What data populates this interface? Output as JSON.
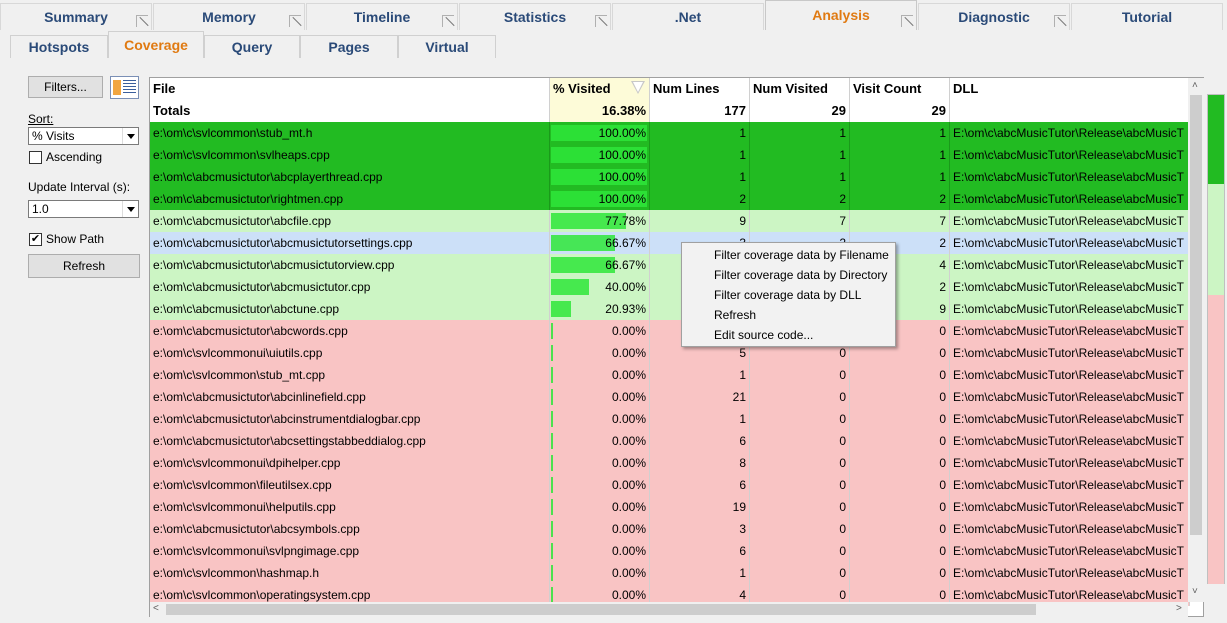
{
  "top_tabs": [
    {
      "label": "Summary",
      "active": false
    },
    {
      "label": "Memory",
      "active": false
    },
    {
      "label": "Timeline",
      "active": false
    },
    {
      "label": "Statistics",
      "active": false
    },
    {
      "label": ".Net",
      "active": false
    },
    {
      "label": "Analysis",
      "active": true
    },
    {
      "label": "Diagnostic",
      "active": false
    },
    {
      "label": "Tutorial",
      "active": false
    }
  ],
  "sub_tabs": [
    {
      "label": "Hotspots",
      "active": false
    },
    {
      "label": "Coverage",
      "active": true
    },
    {
      "label": "Query",
      "active": false
    },
    {
      "label": "Pages",
      "active": false
    },
    {
      "label": "Virtual",
      "active": false
    }
  ],
  "left_panel": {
    "filters_label": "Filters...",
    "sort_label": "Sort:",
    "sort_value": "% Visits",
    "ascending_label": "Ascending",
    "ascending_checked": false,
    "update_interval_label": "Update Interval (s):",
    "update_interval_value": "1.0",
    "show_path_label": "Show Path",
    "show_path_checked": true,
    "refresh_label": "Refresh"
  },
  "table": {
    "columns": [
      "File",
      "% Visited",
      "Num Lines",
      "Num Visited",
      "Visit Count",
      "DLL"
    ],
    "totals": {
      "label": "Totals",
      "pct": "16.38%",
      "lines": "177",
      "visited": "29",
      "count": "29"
    },
    "rows": [
      {
        "file": "e:\\om\\c\\svlcommon\\stub_mt.h",
        "pct": "100.00%",
        "pct_value": 100,
        "lines": "1",
        "visited": "1",
        "count": "1",
        "dll": "E:\\om\\c\\abcMusicTutor\\Release\\abcMusicT",
        "status": "full"
      },
      {
        "file": "e:\\om\\c\\svlcommon\\svlheaps.cpp",
        "pct": "100.00%",
        "pct_value": 100,
        "lines": "1",
        "visited": "1",
        "count": "1",
        "dll": "E:\\om\\c\\abcMusicTutor\\Release\\abcMusicT",
        "status": "full"
      },
      {
        "file": "e:\\om\\c\\abcmusictutor\\abcplayerthread.cpp",
        "pct": "100.00%",
        "pct_value": 100,
        "lines": "1",
        "visited": "1",
        "count": "1",
        "dll": "E:\\om\\c\\abcMusicTutor\\Release\\abcMusicT",
        "status": "full"
      },
      {
        "file": "e:\\om\\c\\abcmusictutor\\rightmen.cpp",
        "pct": "100.00%",
        "pct_value": 100,
        "lines": "2",
        "visited": "2",
        "count": "2",
        "dll": "E:\\om\\c\\abcMusicTutor\\Release\\abcMusicT",
        "status": "full"
      },
      {
        "file": "e:\\om\\c\\abcmusictutor\\abcfile.cpp",
        "pct": "77.78%",
        "pct_value": 77.78,
        "lines": "9",
        "visited": "7",
        "count": "7",
        "dll": "E:\\om\\c\\abcMusicTutor\\Release\\abcMusicT",
        "status": "partial"
      },
      {
        "file": "e:\\om\\c\\abcmusictutor\\abcmusictutorsettings.cpp",
        "pct": "66.67%",
        "pct_value": 66.67,
        "lines": "3",
        "visited": "2",
        "count": "2",
        "dll": "E:\\om\\c\\abcMusicTutor\\Release\\abcMusicT",
        "status": "selected"
      },
      {
        "file": "e:\\om\\c\\abcmusictutor\\abcmusictutorview.cpp",
        "pct": "66.67%",
        "pct_value": 66.67,
        "lines": "",
        "visited": "",
        "count": "4",
        "dll": "E:\\om\\c\\abcMusicTutor\\Release\\abcMusicT",
        "status": "partial"
      },
      {
        "file": "e:\\om\\c\\abcmusictutor\\abcmusictutor.cpp",
        "pct": "40.00%",
        "pct_value": 40,
        "lines": "",
        "visited": "",
        "count": "2",
        "dll": "E:\\om\\c\\abcMusicTutor\\Release\\abcMusicT",
        "status": "partial"
      },
      {
        "file": "e:\\om\\c\\abcmusictutor\\abctune.cpp",
        "pct": "20.93%",
        "pct_value": 20.93,
        "lines": "",
        "visited": "",
        "count": "9",
        "dll": "E:\\om\\c\\abcMusicTutor\\Release\\abcMusicT",
        "status": "partial"
      },
      {
        "file": "e:\\om\\c\\abcmusictutor\\abcwords.cpp",
        "pct": "0.00%",
        "pct_value": 0,
        "lines": "",
        "visited": "",
        "count": "0",
        "dll": "E:\\om\\c\\abcMusicTutor\\Release\\abcMusicT",
        "status": "none"
      },
      {
        "file": "e:\\om\\c\\svlcommonui\\uiutils.cpp",
        "pct": "0.00%",
        "pct_value": 0,
        "lines": "5",
        "visited": "0",
        "count": "0",
        "dll": "E:\\om\\c\\abcMusicTutor\\Release\\abcMusicT",
        "status": "none"
      },
      {
        "file": "e:\\om\\c\\svlcommon\\stub_mt.cpp",
        "pct": "0.00%",
        "pct_value": 0,
        "lines": "1",
        "visited": "0",
        "count": "0",
        "dll": "E:\\om\\c\\abcMusicTutor\\Release\\abcMusicT",
        "status": "none"
      },
      {
        "file": "e:\\om\\c\\abcmusictutor\\abcinlinefield.cpp",
        "pct": "0.00%",
        "pct_value": 0,
        "lines": "21",
        "visited": "0",
        "count": "0",
        "dll": "E:\\om\\c\\abcMusicTutor\\Release\\abcMusicT",
        "status": "none"
      },
      {
        "file": "e:\\om\\c\\abcmusictutor\\abcinstrumentdialogbar.cpp",
        "pct": "0.00%",
        "pct_value": 0,
        "lines": "1",
        "visited": "0",
        "count": "0",
        "dll": "E:\\om\\c\\abcMusicTutor\\Release\\abcMusicT",
        "status": "none"
      },
      {
        "file": "e:\\om\\c\\abcmusictutor\\abcsettingstabbeddialog.cpp",
        "pct": "0.00%",
        "pct_value": 0,
        "lines": "6",
        "visited": "0",
        "count": "0",
        "dll": "E:\\om\\c\\abcMusicTutor\\Release\\abcMusicT",
        "status": "none"
      },
      {
        "file": "e:\\om\\c\\svlcommonui\\dpihelper.cpp",
        "pct": "0.00%",
        "pct_value": 0,
        "lines": "8",
        "visited": "0",
        "count": "0",
        "dll": "E:\\om\\c\\abcMusicTutor\\Release\\abcMusicT",
        "status": "none"
      },
      {
        "file": "e:\\om\\c\\svlcommon\\fileutilsex.cpp",
        "pct": "0.00%",
        "pct_value": 0,
        "lines": "6",
        "visited": "0",
        "count": "0",
        "dll": "E:\\om\\c\\abcMusicTutor\\Release\\abcMusicT",
        "status": "none"
      },
      {
        "file": "e:\\om\\c\\svlcommonui\\helputils.cpp",
        "pct": "0.00%",
        "pct_value": 0,
        "lines": "19",
        "visited": "0",
        "count": "0",
        "dll": "E:\\om\\c\\abcMusicTutor\\Release\\abcMusicT",
        "status": "none"
      },
      {
        "file": "e:\\om\\c\\abcmusictutor\\abcsymbols.cpp",
        "pct": "0.00%",
        "pct_value": 0,
        "lines": "3",
        "visited": "0",
        "count": "0",
        "dll": "E:\\om\\c\\abcMusicTutor\\Release\\abcMusicT",
        "status": "none"
      },
      {
        "file": "e:\\om\\c\\svlcommonui\\svlpngimage.cpp",
        "pct": "0.00%",
        "pct_value": 0,
        "lines": "6",
        "visited": "0",
        "count": "0",
        "dll": "E:\\om\\c\\abcMusicTutor\\Release\\abcMusicT",
        "status": "none"
      },
      {
        "file": "e:\\om\\c\\svlcommon\\hashmap.h",
        "pct": "0.00%",
        "pct_value": 0,
        "lines": "1",
        "visited": "0",
        "count": "0",
        "dll": "E:\\om\\c\\abcMusicTutor\\Release\\abcMusicT",
        "status": "none"
      },
      {
        "file": "e:\\om\\c\\svlcommon\\operatingsystem.cpp",
        "pct": "0.00%",
        "pct_value": 0,
        "lines": "4",
        "visited": "0",
        "count": "0",
        "dll": "E:\\om\\c\\abcMusicTutor\\Release\\abcMusicT",
        "status": "none"
      }
    ]
  },
  "context_menu": {
    "items": [
      "Filter coverage data by Filename",
      "Filter coverage data by Directory",
      "Filter coverage data by DLL",
      "Refresh",
      "Edit source code..."
    ]
  },
  "colors": {
    "full_row": "#22bb22",
    "partial_row": "#ccf5c4",
    "selected_row": "#cce0f8",
    "none_row": "#f9c4c4",
    "active_tab": "#e07a12",
    "tab_text": "#2a4a78",
    "bar": "#2ee63a"
  }
}
